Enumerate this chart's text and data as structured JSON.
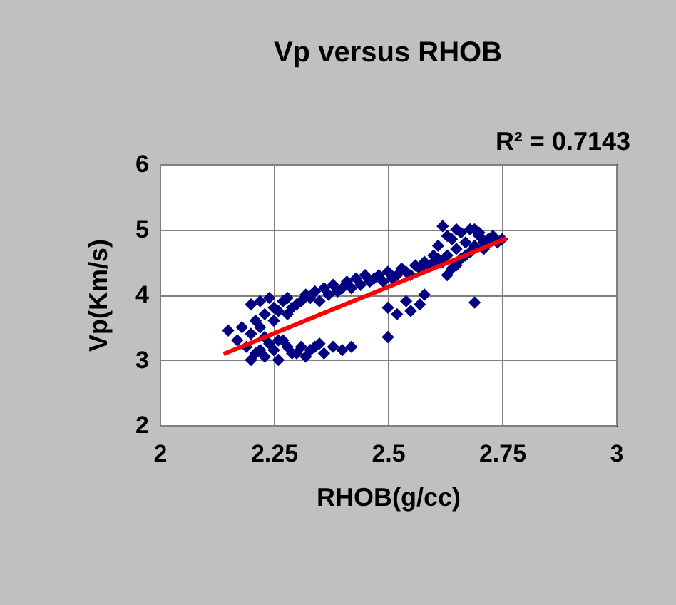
{
  "chart_data": {
    "type": "scatter",
    "title": "Vp versus RHOB",
    "xlabel": "RHOB(g/cc)",
    "ylabel": "Vp(Km/s)",
    "annotations": [
      "R² = 0.7143"
    ],
    "xlim": [
      2,
      3
    ],
    "xticks": [
      2,
      2.25,
      2.5,
      2.75,
      3
    ],
    "ylim": [
      2,
      6
    ],
    "yticks": [
      2,
      3,
      4,
      5,
      6
    ],
    "grid": true,
    "series": [
      {
        "color": "#000080",
        "marker": "diamond",
        "x": [
          2.15,
          2.17,
          2.18,
          2.19,
          2.2,
          2.2,
          2.21,
          2.22,
          2.22,
          2.23,
          2.24,
          2.25,
          2.25,
          2.26,
          2.27,
          2.28,
          2.28,
          2.29,
          2.3,
          2.31,
          2.32,
          2.33,
          2.34,
          2.35,
          2.36,
          2.37,
          2.38,
          2.39,
          2.4,
          2.41,
          2.42,
          2.43,
          2.44,
          2.45,
          2.46,
          2.47,
          2.48,
          2.49,
          2.5,
          2.51,
          2.52,
          2.53,
          2.54,
          2.55,
          2.56,
          2.57,
          2.58,
          2.59,
          2.6,
          2.61,
          2.21,
          2.23,
          2.25,
          2.26,
          2.28,
          2.3,
          2.31,
          2.33,
          2.35,
          2.36,
          2.38,
          2.4,
          2.42,
          2.24,
          2.27,
          2.29,
          2.32,
          2.34,
          2.2,
          2.22,
          2.6,
          2.61,
          2.62,
          2.63,
          2.63,
          2.64,
          2.65,
          2.65,
          2.66,
          2.67,
          2.67,
          2.68,
          2.69,
          2.7,
          2.7,
          2.71,
          2.72,
          2.73,
          2.74,
          2.75,
          2.62,
          2.64,
          2.66,
          2.68,
          2.69,
          2.71,
          2.63,
          2.65,
          2.5,
          2.52,
          2.54,
          2.55,
          2.57,
          2.58,
          2.5,
          2.69,
          2.23,
          2.26
        ],
        "values": [
          3.45,
          3.3,
          3.5,
          3.2,
          3.4,
          3.85,
          3.6,
          3.9,
          3.5,
          3.7,
          3.95,
          3.6,
          3.8,
          3.75,
          3.9,
          3.7,
          3.95,
          3.8,
          3.85,
          3.9,
          4.0,
          3.95,
          4.05,
          3.9,
          4.1,
          4.0,
          4.15,
          4.05,
          4.1,
          4.2,
          4.1,
          4.25,
          4.15,
          4.3,
          4.2,
          4.25,
          4.3,
          4.2,
          4.35,
          4.25,
          4.3,
          4.4,
          4.35,
          4.3,
          4.45,
          4.4,
          4.5,
          4.45,
          4.5,
          4.55,
          3.1,
          3.05,
          3.15,
          3.0,
          3.2,
          3.1,
          3.2,
          3.15,
          3.25,
          3.1,
          3.2,
          3.15,
          3.2,
          3.25,
          3.3,
          3.1,
          3.05,
          3.2,
          3.0,
          3.15,
          4.6,
          4.75,
          5.05,
          4.6,
          4.9,
          4.85,
          4.7,
          5.0,
          4.95,
          4.8,
          4.6,
          5.0,
          4.75,
          4.9,
          4.95,
          4.8,
          4.85,
          4.9,
          4.8,
          4.85,
          4.5,
          4.4,
          4.55,
          4.65,
          5.0,
          4.7,
          4.3,
          4.45,
          3.8,
          3.7,
          3.9,
          3.75,
          3.85,
          4.0,
          3.35,
          3.88,
          3.35,
          3.3
        ]
      },
      {
        "type": "line",
        "color": "#ff0000",
        "x": [
          2.14,
          2.76
        ],
        "values": [
          3.09,
          4.86
        ]
      }
    ]
  }
}
